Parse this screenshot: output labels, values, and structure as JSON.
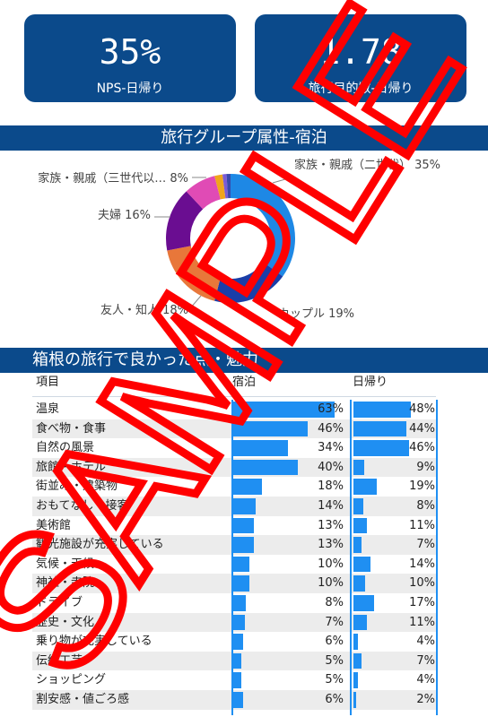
{
  "kpis": [
    {
      "value": "35%",
      "label": "NPS-日帰り"
    },
    {
      "value": "1.78",
      "label": "旅行目的数-日帰り"
    }
  ],
  "donut": {
    "title": "旅行グループ属性-宿泊",
    "chart_data": {
      "type": "pie",
      "title": "旅行グループ属性-宿泊",
      "slices": [
        {
          "label": "家族・親戚（二世代）",
          "value": 35,
          "color": "#1e88e5",
          "display": "35%"
        },
        {
          "label": "カップル",
          "value": 19,
          "color": "#1a3ea8",
          "display": "19%"
        },
        {
          "label": "友人・知人",
          "value": 18,
          "color": "#e8773a",
          "display": "18%"
        },
        {
          "label": "夫婦",
          "value": 16,
          "color": "#6a0d91",
          "display": "16%"
        },
        {
          "label": "家族・親戚（三世代以…",
          "value": 8,
          "color": "#e04bb5",
          "display": "8%"
        },
        {
          "label": "",
          "value": 2,
          "color": "#f0a51c",
          "display": ""
        },
        {
          "label": "",
          "value": 1,
          "color": "#7b5cd6",
          "display": ""
        },
        {
          "label": "",
          "value": 1,
          "color": "#3949ab",
          "display": ""
        }
      ]
    }
  },
  "table": {
    "title": "箱根の旅行で良かった点・魅力",
    "headers": {
      "item": "項目",
      "stay": "宿泊",
      "day": "日帰り"
    },
    "chart_data": {
      "type": "bar",
      "categories": [
        "温泉",
        "食べ物・食事",
        "自然の風景",
        "旅館・ホテル",
        "街並み・建築物",
        "おもてなし・接客",
        "美術館",
        "観光施設が充実している",
        "気候・天候",
        "神社・寺院",
        "ドライブ",
        "歴史・文化",
        "乗り物が充実している",
        "伝統工芸",
        "ショッピング",
        "割安感・値ごろ感"
      ],
      "series": [
        {
          "name": "宿泊",
          "values": [
            63,
            46,
            34,
            40,
            18,
            14,
            13,
            13,
            10,
            10,
            8,
            7,
            6,
            5,
            5,
            6
          ]
        },
        {
          "name": "日帰り",
          "values": [
            48,
            44,
            46,
            9,
            19,
            8,
            11,
            7,
            14,
            10,
            17,
            11,
            4,
            7,
            4,
            2
          ]
        }
      ],
      "xlim": [
        0,
        70
      ]
    },
    "stay_labels": [
      "63%",
      "46%",
      "34%",
      "40%",
      "18%",
      "14%",
      "13%",
      "13%",
      "10%",
      "10%",
      "8%",
      "7%",
      "6%",
      "5%",
      "5%",
      "6%"
    ],
    "day_labels": [
      "48%",
      "44%",
      "46%",
      "9%",
      "19%",
      "8%",
      "11%",
      "7%",
      "14%",
      "10%",
      "17%",
      "11%",
      "4%",
      "7%",
      "4%",
      "2%"
    ]
  },
  "watermark": {
    "text": "SAMPLE",
    "color": "#ff0000"
  }
}
